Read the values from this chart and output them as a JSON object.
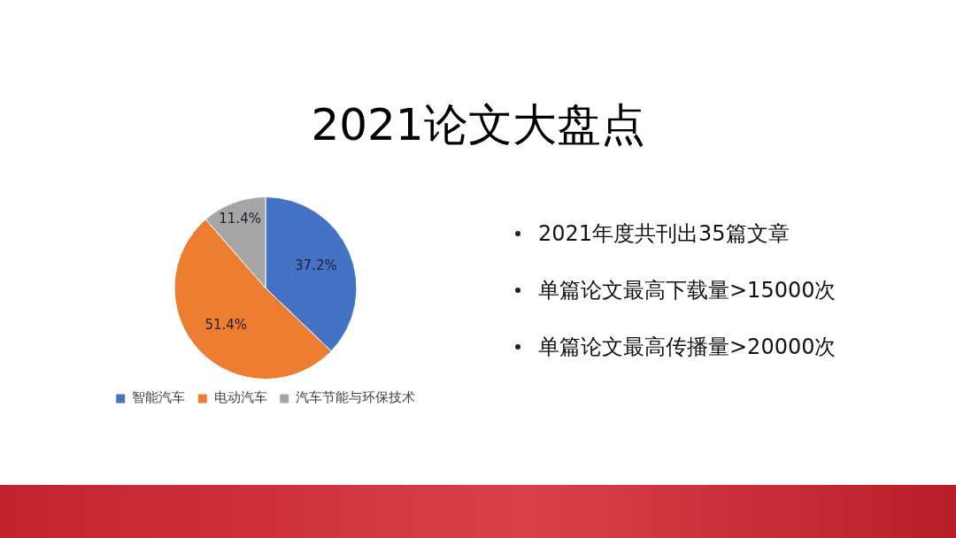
{
  "chart_data": {
    "type": "pie",
    "title": "2021论文大盘点",
    "categories": [
      "智能汽车",
      "电动汽车",
      "汽车节能与环保技术"
    ],
    "values": [
      37.2,
      51.4,
      11.4
    ],
    "colors": [
      "#4472c4",
      "#ed7d31",
      "#a5a5a5"
    ],
    "value_labels": [
      "37.2%",
      "51.4%",
      "11.4%"
    ],
    "legend": "bottom",
    "annotations": [
      "2021年度共刊出35篇文章",
      "单篇论文最高下载量>15000次",
      "单篇论文最高传播量>20000次"
    ]
  }
}
